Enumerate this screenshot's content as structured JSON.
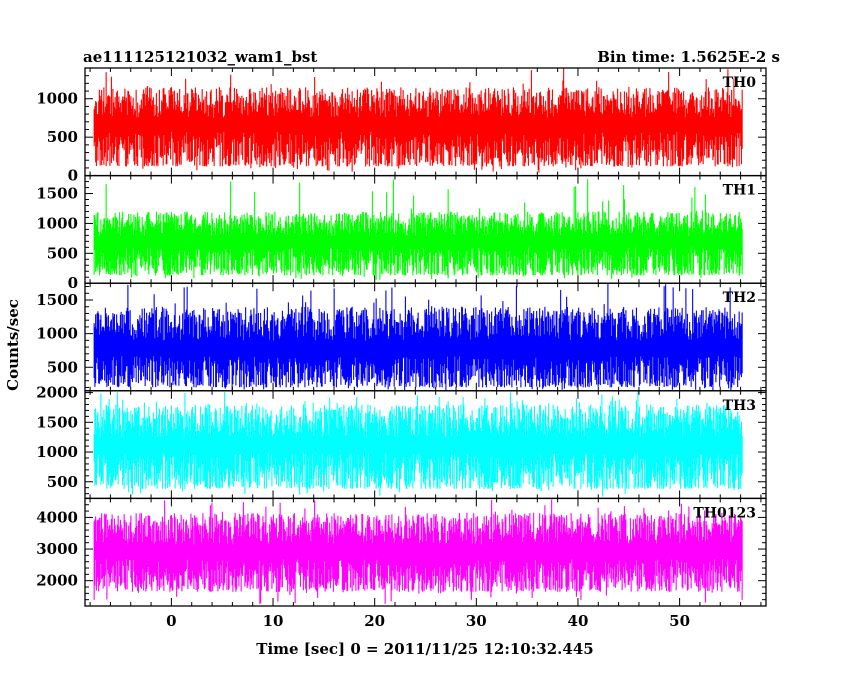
{
  "chart_data": {
    "type": "line",
    "title": "ae111125121032_wam1_bst",
    "subtitle": "Bin time: 1.5625E-2 s",
    "xlabel": "Time [sec] 0 = 2011/11/25 12:10:32.445",
    "ylabel": "Counts/sec",
    "xlim": [
      -8.5,
      58.5
    ],
    "x_ticks": [
      0,
      10,
      20,
      30,
      40,
      50
    ],
    "x_range_data": [
      -7.6,
      56.2
    ],
    "grid": false,
    "panels": [
      {
        "name": "TH0",
        "color": "#ff0000",
        "ylim": [
          0,
          1400
        ],
        "y_ticks": [
          0,
          500,
          1000
        ],
        "baseline": 620,
        "lower_typical": 120,
        "upper_typical": 1150,
        "min": 40,
        "max": 1400
      },
      {
        "name": "TH1",
        "color": "#00ff00",
        "ylim": [
          0,
          1800
        ],
        "y_ticks": [
          0,
          500,
          1000,
          1500
        ],
        "baseline": 650,
        "lower_typical": 130,
        "upper_typical": 1200,
        "min": 50,
        "max": 1750
      },
      {
        "name": "TH2",
        "color": "#0000ff",
        "ylim": [
          150,
          1750
        ],
        "y_ticks": [
          500,
          1000,
          1500
        ],
        "baseline": 720,
        "lower_typical": 200,
        "upper_typical": 1400,
        "min": 150,
        "max": 1750
      },
      {
        "name": "TH3",
        "color": "#00ffff",
        "ylim": [
          220,
          2030
        ],
        "y_ticks": [
          500,
          1000,
          1500,
          2000
        ],
        "baseline": 1050,
        "lower_typical": 380,
        "upper_typical": 1800,
        "min": 250,
        "max": 2030
      },
      {
        "name": "TH0123",
        "color": "#ff00ff",
        "ylim": [
          1200,
          4600
        ],
        "y_ticks": [
          2000,
          3000,
          4000
        ],
        "baseline": 2800,
        "lower_typical": 1650,
        "upper_typical": 4150,
        "min": 1250,
        "max": 4600
      }
    ]
  }
}
